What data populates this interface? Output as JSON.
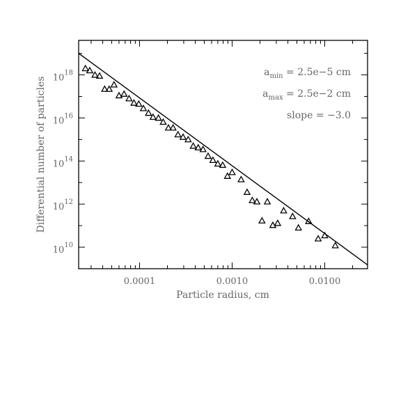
{
  "chart_data": {
    "type": "scatter",
    "xlabel": "Particle radius, cm",
    "ylabel": "Differential number of particles",
    "xscale": "log",
    "yscale": "log",
    "xlim": [
      2.2e-05,
      0.029
    ],
    "ylim": [
      1000000000.0,
      4e+19
    ],
    "x_tick_labels": [
      {
        "value": 0.0001,
        "label": "0.0001"
      },
      {
        "value": 0.001,
        "label": "0.0010"
      },
      {
        "value": 0.01,
        "label": "0.0100"
      }
    ],
    "y_tick_labels": [
      {
        "value": 10000000000.0,
        "base": "10",
        "exp": "10"
      },
      {
        "value": 1000000000000.0,
        "base": "10",
        "exp": "12"
      },
      {
        "value": 100000000000000.0,
        "base": "10",
        "exp": "14"
      },
      {
        "value": 1e+16,
        "base": "10",
        "exp": "16"
      },
      {
        "value": 1e+18,
        "base": "10",
        "exp": "18"
      }
    ],
    "annotations": [
      {
        "main": "a",
        "sub": "min",
        "rest": " = 2.5e−5 cm"
      },
      {
        "main": "a",
        "sub": "max",
        "rest": " = 2.5e−2 cm"
      },
      {
        "main": "slope = −3.0",
        "sub": "",
        "rest": ""
      }
    ],
    "fit_line": {
      "slope": -3.0,
      "points": [
        [
          2.2e-05,
          1e+19
        ],
        [
          0.029,
          1500000000.0
        ]
      ]
    },
    "series": [
      {
        "marker": "triangle-open",
        "points": [
          [
            2.6e-05,
            2e+18
          ],
          [
            2.9e-05,
            1.6e+18
          ],
          [
            3.3e-05,
            1e+18
          ],
          [
            3.7e-05,
            9e+17
          ],
          [
            4.2e-05,
            2.2e+17
          ],
          [
            4.7e-05,
            2.2e+17
          ],
          [
            5.3e-05,
            3.5e+17
          ],
          [
            6e-05,
            1.1e+17
          ],
          [
            6.8e-05,
            1.3e+17
          ],
          [
            7.7e-05,
            8e+16
          ],
          [
            8.7e-05,
            5e+16
          ],
          [
            9.8e-05,
            4.5e+16
          ],
          [
            0.00011,
            2.8e+16
          ],
          [
            0.000125,
            1.7e+16
          ],
          [
            0.00014,
            1.1e+16
          ],
          [
            0.00016,
            1e+16
          ],
          [
            0.00018,
            6500000000000000.0
          ],
          [
            0.000205,
            3500000000000000.0
          ],
          [
            0.00023,
            3500000000000000.0
          ],
          [
            0.00026,
            1700000000000000.0
          ],
          [
            0.000295,
            1300000000000000.0
          ],
          [
            0.000335,
            1000000000000000.0
          ],
          [
            0.00038,
            500000000000000.0
          ],
          [
            0.00043,
            420000000000000.0
          ],
          [
            0.000485,
            350000000000000.0
          ],
          [
            0.00055,
            170000000000000.0
          ],
          [
            0.00062,
            110000000000000.0
          ],
          [
            0.0007,
            75000000000000.0
          ],
          [
            0.00079,
            65000000000000.0
          ],
          [
            0.00089,
            20000000000000.0
          ],
          [
            0.001,
            30000000000000.0
          ],
          [
            0.00125,
            14000000000000.0
          ],
          [
            0.00145,
            3600000000000.0
          ],
          [
            0.00165,
            1500000000000.0
          ],
          [
            0.00185,
            1300000000000.0
          ],
          [
            0.0021,
            170000000000.0
          ],
          [
            0.0024,
            1300000000000.0
          ],
          [
            0.00275,
            105000000000.0
          ],
          [
            0.0031,
            130000000000.0
          ],
          [
            0.0036,
            500000000000.0
          ],
          [
            0.0045,
            270000000000.0
          ],
          [
            0.0052,
            80000000000.0
          ],
          [
            0.0067,
            160000000000.0
          ],
          [
            0.0085,
            25000000000.0
          ],
          [
            0.01,
            35000000000.0
          ],
          [
            0.013,
            12000000000.0
          ]
        ]
      }
    ]
  }
}
